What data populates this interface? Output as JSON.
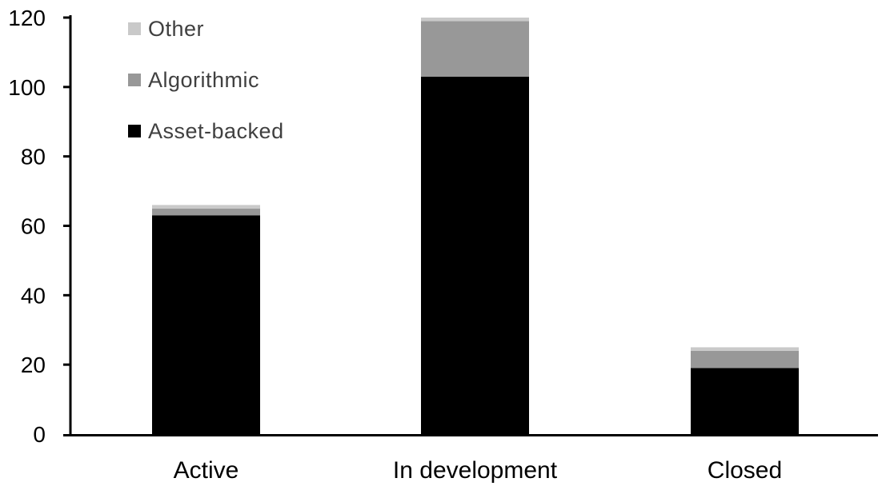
{
  "chart_data": {
    "type": "bar",
    "stacked": true,
    "title": "",
    "xlabel": "",
    "ylabel": "",
    "categories": [
      "Active",
      "In development",
      "Closed"
    ],
    "series": [
      {
        "name": "Asset-backed",
        "color": "#000000",
        "values": [
          63,
          103,
          19
        ]
      },
      {
        "name": "Algorithmic",
        "color": "#989898",
        "values": [
          2,
          16,
          5
        ]
      },
      {
        "name": "Other",
        "color": "#c9c9c9",
        "values": [
          1,
          1,
          1
        ]
      }
    ],
    "totals": [
      66,
      120,
      25
    ],
    "ylim": [
      0,
      120
    ],
    "ytick_step": 20,
    "ytick_labels": [
      "0",
      "20",
      "40",
      "60",
      "80",
      "100",
      "120"
    ],
    "grid": false,
    "legend_position": "upper-left",
    "legend_order_top_to_bottom": [
      "Other",
      "Algorithmic",
      "Asset-backed"
    ],
    "axis_color": "#000000",
    "tick_label_color": "#000000",
    "category_label_color": "#000000",
    "legend_text_color": "#404040",
    "background_color": "#ffffff"
  }
}
